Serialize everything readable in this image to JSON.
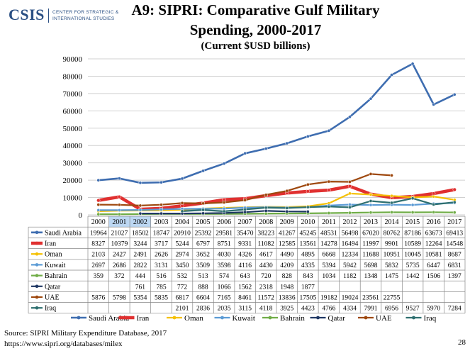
{
  "logo": {
    "name": "CSIS",
    "line1": "CENTER FOR STRATEGIC &",
    "line2": "INTERNATIONAL STUDIES"
  },
  "title_line1": "A9: SIPRI: Comparative Gulf Military",
  "title_line2": "Spending, 2000-2017",
  "subtitle": "(Current $USD billions)",
  "source": "Source: SIPRI Military Expenditure Database, 2017",
  "url": "https://www.sipri.org/databases/milex",
  "page_number": "28",
  "chart_data": {
    "type": "line",
    "categories": [
      "2000",
      "2001",
      "2002",
      "2003",
      "2004",
      "2005",
      "2006",
      "2007",
      "2008",
      "2009",
      "2010",
      "2011",
      "2012",
      "2013",
      "2014",
      "2015",
      "2016",
      "2017"
    ],
    "highlighted_categories": [
      "2001",
      "2002"
    ],
    "ylim": [
      0,
      90000
    ],
    "yticks": [
      "0",
      "10000",
      "20000",
      "30000",
      "40000",
      "50000",
      "60000",
      "70000",
      "80000",
      "90000"
    ],
    "grid": true,
    "legend_position": "bottom",
    "series": [
      {
        "name": "Saudi Arabia",
        "color": "#3e6db0",
        "width": 2.6,
        "values": [
          19964,
          21027,
          18502,
          18747,
          20910,
          25392,
          29581,
          35470,
          38223,
          41267,
          45245,
          48531,
          56498,
          67020,
          80762,
          87186,
          63673,
          69413
        ]
      },
      {
        "name": "Iran",
        "color": "#e03030",
        "width": 4.5,
        "values": [
          8327,
          10379,
          3244,
          3717,
          5244,
          6797,
          8751,
          9331,
          11082,
          12585,
          13561,
          14278,
          16494,
          11997,
          9901,
          10589,
          12264,
          14548
        ]
      },
      {
        "name": "Oman",
        "color": "#f5c000",
        "width": 2.2,
        "values": [
          2103,
          2427,
          2491,
          2626,
          2974,
          3652,
          4030,
          4326,
          4617,
          4490,
          4895,
          6668,
          12334,
          11688,
          10951,
          10045,
          10581,
          8687
        ]
      },
      {
        "name": "Kuwait",
        "color": "#5b9bd5",
        "width": 2.2,
        "values": [
          2697,
          2686,
          2822,
          3131,
          3450,
          3509,
          3598,
          4116,
          4430,
          4209,
          4335,
          5394,
          5942,
          5698,
          5832,
          5735,
          6447,
          6831
        ]
      },
      {
        "name": "Bahrain",
        "color": "#70ad47",
        "width": 2.2,
        "values": [
          359,
          372,
          444,
          516,
          532,
          513,
          574,
          643,
          720,
          828,
          843,
          1034,
          1182,
          1348,
          1475,
          1442,
          1506,
          1397
        ]
      },
      {
        "name": "Qatar",
        "color": "#203864",
        "width": 2.2,
        "values": [
          null,
          null,
          761,
          785,
          772,
          888,
          1066,
          1562,
          2318,
          1948,
          1877,
          null,
          null,
          null,
          null,
          null,
          null,
          null
        ]
      },
      {
        "name": "UAE",
        "color": "#9e480e",
        "width": 2.2,
        "values": [
          5876,
          5798,
          5354,
          5835,
          6817,
          6604,
          7165,
          8461,
          11572,
          13836,
          17505,
          19182,
          19024,
          23561,
          22755,
          null,
          null,
          null
        ]
      },
      {
        "name": "Iraq",
        "color": "#2e6f6f",
        "width": 2.2,
        "values": [
          null,
          null,
          null,
          null,
          2101,
          2836,
          2035,
          3115,
          4118,
          3925,
          4423,
          4766,
          4334,
          7991,
          6956,
          9527,
          5970,
          7284
        ]
      }
    ]
  }
}
